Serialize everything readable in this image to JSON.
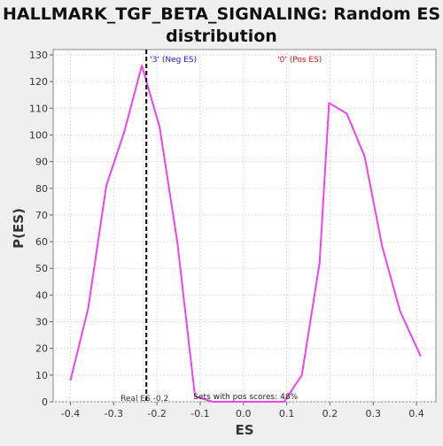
{
  "chart_data": {
    "type": "line",
    "title": "HALLMARK_TGF_BETA_SIGNALING: Random ES distribution",
    "title_lines": [
      "HALLMARK_TGF_BETA_SIGNALING: Random ES",
      "distribution"
    ],
    "xlabel": "ES",
    "ylabel": "P(ES)",
    "xlim": [
      -0.44,
      0.445
    ],
    "ylim": [
      0,
      132
    ],
    "x_ticks": [
      -0.4,
      -0.3,
      -0.2,
      -0.1,
      0.0,
      0.1,
      0.2,
      0.3,
      0.4
    ],
    "x_tick_labels": [
      "-0.4",
      "-0.3",
      "-0.2",
      "-0.1",
      "0.0",
      "0.1",
      "0.2",
      "0.3",
      "0.4"
    ],
    "y_ticks": [
      0,
      10,
      20,
      30,
      40,
      50,
      60,
      70,
      80,
      90,
      100,
      110,
      120,
      130
    ],
    "y_tick_labels": [
      "0",
      "10",
      "20",
      "30",
      "40",
      "50",
      "60",
      "70",
      "80",
      "90",
      "100",
      "110",
      "120",
      "130"
    ],
    "grid": true,
    "series": [
      {
        "color": "#ee44ee",
        "x": [
          -0.4,
          -0.359,
          -0.317,
          -0.276,
          -0.235,
          -0.194,
          -0.153,
          -0.112,
          -0.071,
          -0.029,
          0.012,
          0.053,
          0.094,
          0.135,
          0.176,
          0.198,
          0.239,
          0.28,
          0.321,
          0.362,
          0.41
        ],
        "y": [
          8,
          35,
          81,
          101,
          126,
          103,
          60,
          2,
          0,
          0,
          0,
          0,
          0,
          10,
          52,
          112,
          108,
          92,
          58,
          34,
          17
        ]
      }
    ],
    "real_es": {
      "x": -0.2245,
      "label": "Real ES -0.2",
      "color": "#000000"
    },
    "annotations": {
      "neg_label": "'3' (Neg ES)",
      "neg_color": "#1a1ad4",
      "pos_label": "'0' (Pos ES)",
      "pos_color": "#e01010",
      "pos_scores": "Sets with pos scores: 48%"
    },
    "colors": {
      "background": "#efefef",
      "plot_background": "#ffffff",
      "grid": "#dddddd"
    }
  }
}
